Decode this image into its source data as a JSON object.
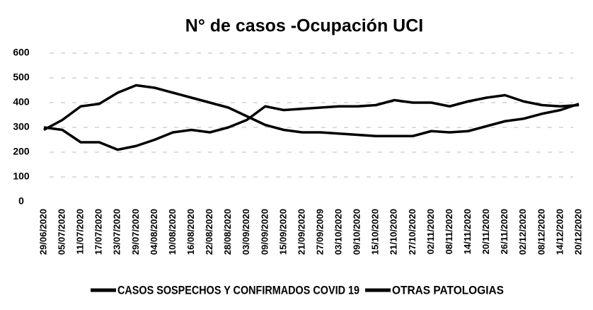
{
  "chart_data": {
    "type": "line",
    "title": "N° de casos -Ocupación UCI",
    "categories": [
      "29/06/2020",
      "05/07/2020",
      "11/07/2020",
      "17/07/2020",
      "23/07/2020",
      "29/07/2020",
      "04/08/2020",
      "10/08/2020",
      "16/08/2020",
      "22/08/2020",
      "28/08/2020",
      "03/09/2020",
      "09/09/2020",
      "15/09/2020",
      "21/09/2020",
      "27/09/2009",
      "03/10/2020",
      "09/10/2020",
      "15/10/2020",
      "21/10/2020",
      "27/10/2020",
      "02/11/2020",
      "08/11/2020",
      "14/11/2020",
      "20/11/2020",
      "26/11/2020",
      "02/12/2020",
      "08/12/2020",
      "14/12/2020",
      "20/12/2020"
    ],
    "series": [
      {
        "name": "CASOS SOSPECHOS Y CONFIRMADOS COVID 19",
        "color": "#000000",
        "values": [
          290,
          330,
          385,
          395,
          440,
          470,
          460,
          440,
          420,
          400,
          380,
          345,
          310,
          290,
          280,
          280,
          275,
          270,
          265,
          265,
          265,
          285,
          280,
          285,
          305,
          325,
          335,
          355,
          370,
          395
        ]
      },
      {
        "name": "OTRAS PATOLOGIAS",
        "color": "#000000",
        "values": [
          300,
          290,
          240,
          240,
          210,
          225,
          250,
          280,
          290,
          280,
          300,
          330,
          385,
          370,
          375,
          380,
          385,
          385,
          390,
          410,
          400,
          400,
          385,
          405,
          420,
          430,
          405,
          390,
          385,
          390
        ]
      }
    ],
    "ylim": [
      0,
      600
    ],
    "yticks": [
      0,
      100,
      200,
      300,
      400,
      500,
      600
    ],
    "grid": true
  }
}
